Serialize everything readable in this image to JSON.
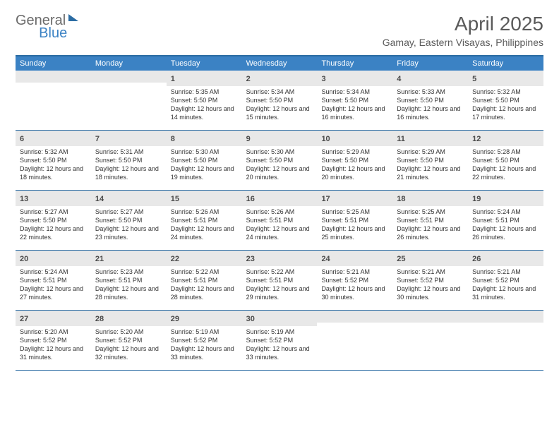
{
  "logo": {
    "text1": "General",
    "text2": "Blue"
  },
  "title": "April 2025",
  "subtitle": "Gamay, Eastern Visayas, Philippines",
  "structure_type": "calendar-table",
  "background_color": "#ffffff",
  "accent_color": "#3b82c4",
  "rule_color": "#2b6ca3",
  "daynum_bg": "#e8e8e8",
  "text_color": "#333333",
  "title_color": "#5a5a5a",
  "title_fontsize": 28,
  "subtitle_fontsize": 14,
  "header_fontsize": 11,
  "body_fontsize": 9,
  "dayHeaders": [
    "Sunday",
    "Monday",
    "Tuesday",
    "Wednesday",
    "Thursday",
    "Friday",
    "Saturday"
  ],
  "weeks": [
    [
      {
        "n": "",
        "sr": "",
        "ss": "",
        "dl": ""
      },
      {
        "n": "",
        "sr": "",
        "ss": "",
        "dl": ""
      },
      {
        "n": "1",
        "sr": "5:35 AM",
        "ss": "5:50 PM",
        "dl": "12 hours and 14 minutes."
      },
      {
        "n": "2",
        "sr": "5:34 AM",
        "ss": "5:50 PM",
        "dl": "12 hours and 15 minutes."
      },
      {
        "n": "3",
        "sr": "5:34 AM",
        "ss": "5:50 PM",
        "dl": "12 hours and 16 minutes."
      },
      {
        "n": "4",
        "sr": "5:33 AM",
        "ss": "5:50 PM",
        "dl": "12 hours and 16 minutes."
      },
      {
        "n": "5",
        "sr": "5:32 AM",
        "ss": "5:50 PM",
        "dl": "12 hours and 17 minutes."
      }
    ],
    [
      {
        "n": "6",
        "sr": "5:32 AM",
        "ss": "5:50 PM",
        "dl": "12 hours and 18 minutes."
      },
      {
        "n": "7",
        "sr": "5:31 AM",
        "ss": "5:50 PM",
        "dl": "12 hours and 18 minutes."
      },
      {
        "n": "8",
        "sr": "5:30 AM",
        "ss": "5:50 PM",
        "dl": "12 hours and 19 minutes."
      },
      {
        "n": "9",
        "sr": "5:30 AM",
        "ss": "5:50 PM",
        "dl": "12 hours and 20 minutes."
      },
      {
        "n": "10",
        "sr": "5:29 AM",
        "ss": "5:50 PM",
        "dl": "12 hours and 20 minutes."
      },
      {
        "n": "11",
        "sr": "5:29 AM",
        "ss": "5:50 PM",
        "dl": "12 hours and 21 minutes."
      },
      {
        "n": "12",
        "sr": "5:28 AM",
        "ss": "5:50 PM",
        "dl": "12 hours and 22 minutes."
      }
    ],
    [
      {
        "n": "13",
        "sr": "5:27 AM",
        "ss": "5:50 PM",
        "dl": "12 hours and 22 minutes."
      },
      {
        "n": "14",
        "sr": "5:27 AM",
        "ss": "5:50 PM",
        "dl": "12 hours and 23 minutes."
      },
      {
        "n": "15",
        "sr": "5:26 AM",
        "ss": "5:51 PM",
        "dl": "12 hours and 24 minutes."
      },
      {
        "n": "16",
        "sr": "5:26 AM",
        "ss": "5:51 PM",
        "dl": "12 hours and 24 minutes."
      },
      {
        "n": "17",
        "sr": "5:25 AM",
        "ss": "5:51 PM",
        "dl": "12 hours and 25 minutes."
      },
      {
        "n": "18",
        "sr": "5:25 AM",
        "ss": "5:51 PM",
        "dl": "12 hours and 26 minutes."
      },
      {
        "n": "19",
        "sr": "5:24 AM",
        "ss": "5:51 PM",
        "dl": "12 hours and 26 minutes."
      }
    ],
    [
      {
        "n": "20",
        "sr": "5:24 AM",
        "ss": "5:51 PM",
        "dl": "12 hours and 27 minutes."
      },
      {
        "n": "21",
        "sr": "5:23 AM",
        "ss": "5:51 PM",
        "dl": "12 hours and 28 minutes."
      },
      {
        "n": "22",
        "sr": "5:22 AM",
        "ss": "5:51 PM",
        "dl": "12 hours and 28 minutes."
      },
      {
        "n": "23",
        "sr": "5:22 AM",
        "ss": "5:51 PM",
        "dl": "12 hours and 29 minutes."
      },
      {
        "n": "24",
        "sr": "5:21 AM",
        "ss": "5:52 PM",
        "dl": "12 hours and 30 minutes."
      },
      {
        "n": "25",
        "sr": "5:21 AM",
        "ss": "5:52 PM",
        "dl": "12 hours and 30 minutes."
      },
      {
        "n": "26",
        "sr": "5:21 AM",
        "ss": "5:52 PM",
        "dl": "12 hours and 31 minutes."
      }
    ],
    [
      {
        "n": "27",
        "sr": "5:20 AM",
        "ss": "5:52 PM",
        "dl": "12 hours and 31 minutes."
      },
      {
        "n": "28",
        "sr": "5:20 AM",
        "ss": "5:52 PM",
        "dl": "12 hours and 32 minutes."
      },
      {
        "n": "29",
        "sr": "5:19 AM",
        "ss": "5:52 PM",
        "dl": "12 hours and 33 minutes."
      },
      {
        "n": "30",
        "sr": "5:19 AM",
        "ss": "5:52 PM",
        "dl": "12 hours and 33 minutes."
      },
      {
        "n": "",
        "sr": "",
        "ss": "",
        "dl": ""
      },
      {
        "n": "",
        "sr": "",
        "ss": "",
        "dl": ""
      },
      {
        "n": "",
        "sr": "",
        "ss": "",
        "dl": ""
      }
    ]
  ],
  "labels": {
    "sunrise": "Sunrise:",
    "sunset": "Sunset:",
    "daylight": "Daylight:"
  }
}
